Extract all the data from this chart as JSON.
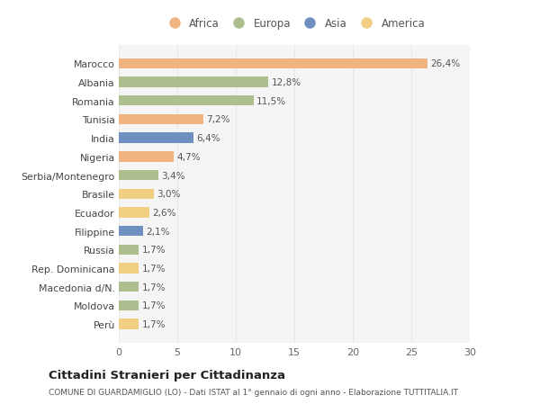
{
  "countries": [
    "Marocco",
    "Albania",
    "Romania",
    "Tunisia",
    "India",
    "Nigeria",
    "Serbia/Montenegro",
    "Brasile",
    "Ecuador",
    "Filippine",
    "Russia",
    "Rep. Dominicana",
    "Macedonia d/N.",
    "Moldova",
    "Perù"
  ],
  "values": [
    26.4,
    12.8,
    11.5,
    7.2,
    6.4,
    4.7,
    3.4,
    3.0,
    2.6,
    2.1,
    1.7,
    1.7,
    1.7,
    1.7,
    1.7
  ],
  "labels": [
    "26,4%",
    "12,8%",
    "11,5%",
    "7,2%",
    "6,4%",
    "4,7%",
    "3,4%",
    "3,0%",
    "2,6%",
    "2,1%",
    "1,7%",
    "1,7%",
    "1,7%",
    "1,7%",
    "1,7%"
  ],
  "continents": [
    "Africa",
    "Europa",
    "Europa",
    "Africa",
    "Asia",
    "Africa",
    "Europa",
    "America",
    "America",
    "Asia",
    "Europa",
    "America",
    "Europa",
    "Europa",
    "America"
  ],
  "continent_colors": {
    "Africa": "#F0B482",
    "Europa": "#ADBF8E",
    "Asia": "#6E8FC0",
    "America": "#F0CF82"
  },
  "legend_order": [
    "Africa",
    "Europa",
    "Asia",
    "America"
  ],
  "title": "Cittadini Stranieri per Cittadinanza",
  "subtitle": "COMUNE DI GUARDAMIGLIO (LO) - Dati ISTAT al 1° gennaio di ogni anno - Elaborazione TUTTITALIA.IT",
  "xlim": [
    0,
    30
  ],
  "xticks": [
    0,
    5,
    10,
    15,
    20,
    25,
    30
  ],
  "bg_color": "#ffffff",
  "plot_bg_color": "#f5f5f5",
  "grid_color": "#e8e8e8"
}
